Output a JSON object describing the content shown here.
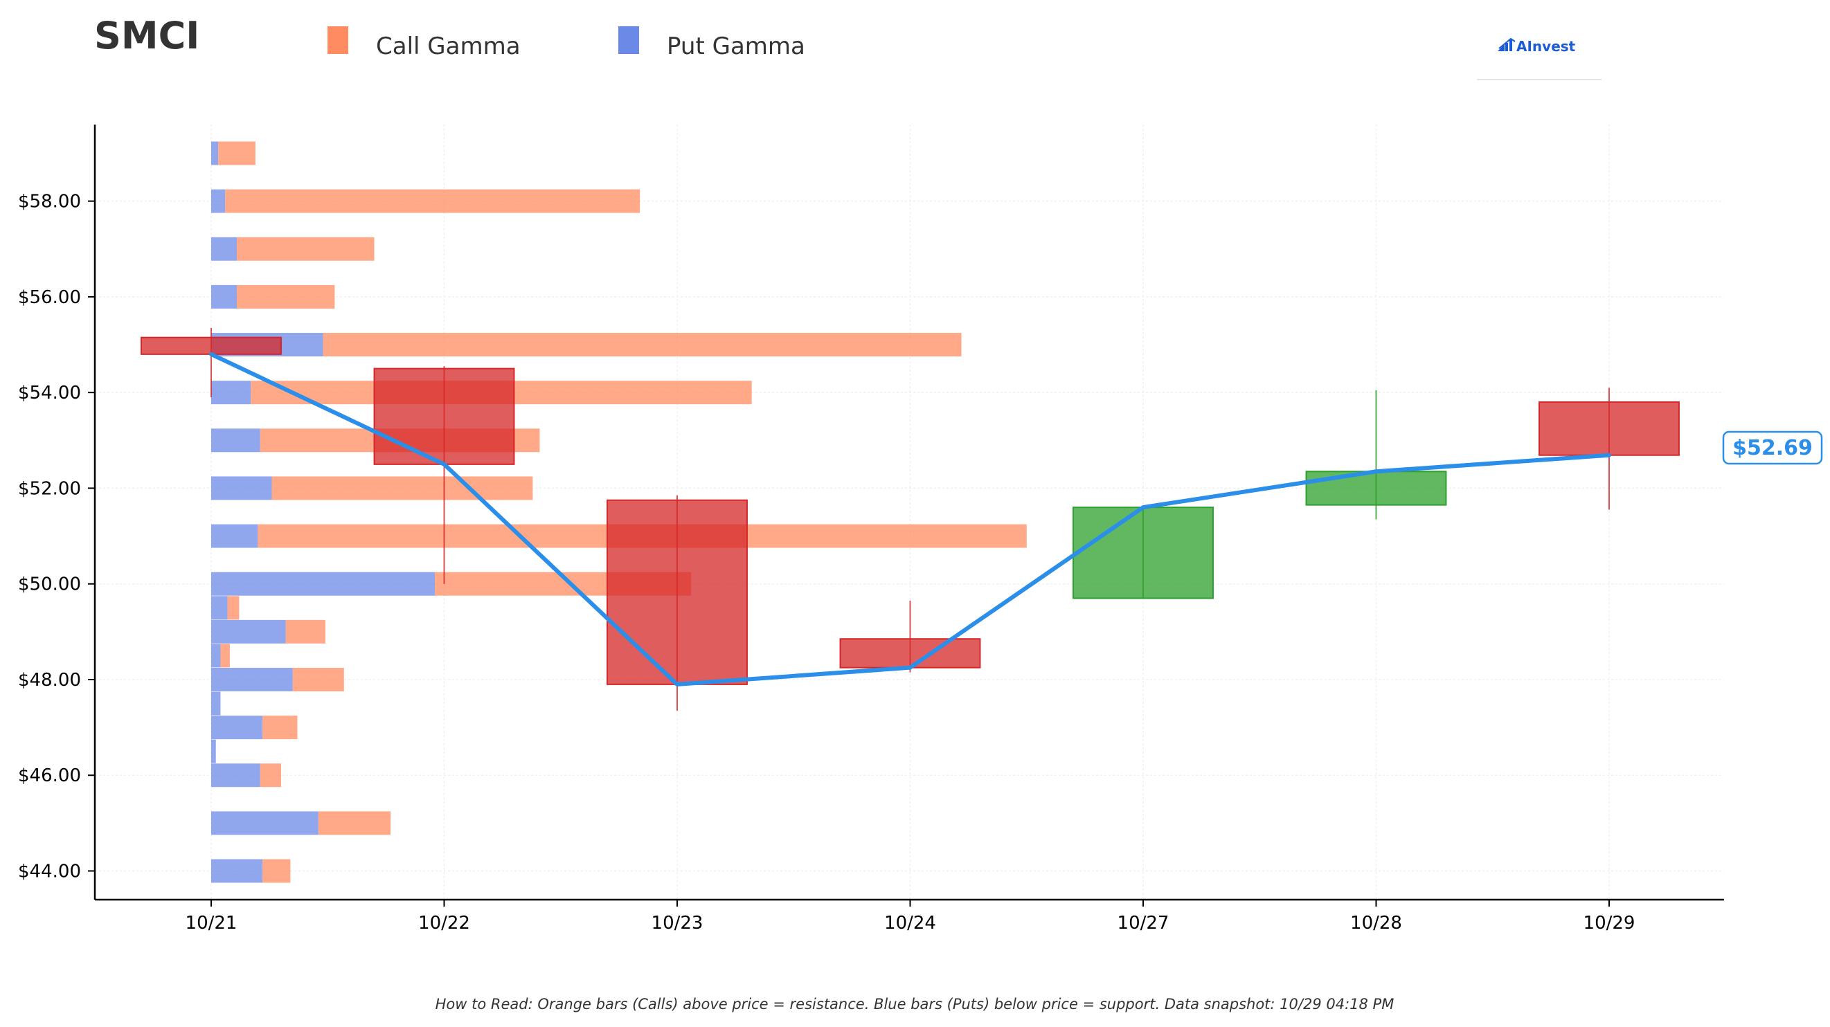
{
  "ticker": "SMCI",
  "legend": [
    {
      "label": "Call Gamma",
      "color": "#ff8c61"
    },
    {
      "label": "Put Gamma",
      "color": "#6b8ae8"
    }
  ],
  "logo": {
    "text": "AInvest",
    "color": "#1a5bd6"
  },
  "current_price_label": "$52.69",
  "footer": "How to Read: Orange bars (Calls) above price = resistance. Blue bars (Puts) below price = support. Data snapshot: 10/29 04:18 PM",
  "colors": {
    "call": "#ff8c61",
    "put": "#6b8ae8",
    "up": "#2ca02c",
    "down": "#d62728",
    "price_line": "#2b8ee8"
  },
  "chart_data": {
    "type": "candlestick_with_gamma_bars",
    "x_categories": [
      "10/21",
      "10/22",
      "10/23",
      "10/24",
      "10/27",
      "10/28",
      "10/29"
    ],
    "ylim": [
      43.4,
      59.6
    ],
    "y_ticks": [
      44,
      46,
      48,
      50,
      52,
      54,
      56,
      58
    ],
    "y_tick_labels": [
      "$44.00",
      "$46.00",
      "$48.00",
      "$50.00",
      "$52.00",
      "$54.00",
      "$56.00",
      "$58.00"
    ],
    "grid": true,
    "candles": [
      {
        "date": "10/21",
        "open": 55.15,
        "high": 55.35,
        "low": 53.9,
        "close": 54.8
      },
      {
        "date": "10/22",
        "open": 54.5,
        "high": 54.55,
        "low": 50.0,
        "close": 52.5
      },
      {
        "date": "10/23",
        "open": 51.75,
        "high": 51.85,
        "low": 47.35,
        "close": 47.9
      },
      {
        "date": "10/24",
        "open": 48.85,
        "high": 49.65,
        "low": 48.15,
        "close": 48.25
      },
      {
        "date": "10/27",
        "open": 49.7,
        "high": 51.6,
        "low": 49.7,
        "close": 51.6
      },
      {
        "date": "10/28",
        "open": 51.65,
        "high": 54.05,
        "low": 51.35,
        "close": 52.35
      },
      {
        "date": "10/29",
        "open": 53.8,
        "high": 54.1,
        "low": 51.55,
        "close": 52.69
      }
    ],
    "gamma_bars": {
      "unit_note": "horizontal bar lengths in x-axis day units starting at 10/21",
      "levels": [
        {
          "strike": 59.0,
          "put": 0.03,
          "call": 0.16
        },
        {
          "strike": 58.0,
          "put": 0.06,
          "call": 1.78
        },
        {
          "strike": 57.0,
          "put": 0.11,
          "call": 0.59
        },
        {
          "strike": 56.0,
          "put": 0.11,
          "call": 0.42
        },
        {
          "strike": 55.0,
          "put": 0.48,
          "call": 2.74
        },
        {
          "strike": 54.0,
          "put": 0.17,
          "call": 2.15
        },
        {
          "strike": 53.0,
          "put": 0.21,
          "call": 1.2
        },
        {
          "strike": 52.0,
          "put": 0.26,
          "call": 1.12
        },
        {
          "strike": 51.0,
          "put": 0.2,
          "call": 3.3
        },
        {
          "strike": 50.0,
          "put": 0.96,
          "call": 1.1
        },
        {
          "strike": 49.5,
          "put": 0.07,
          "call": 0.05
        },
        {
          "strike": 49.0,
          "put": 0.32,
          "call": 0.17
        },
        {
          "strike": 48.5,
          "put": 0.04,
          "call": 0.04
        },
        {
          "strike": 48.0,
          "put": 0.35,
          "call": 0.22
        },
        {
          "strike": 47.5,
          "put": 0.04,
          "call": 0.0
        },
        {
          "strike": 47.0,
          "put": 0.22,
          "call": 0.15
        },
        {
          "strike": 46.5,
          "put": 0.02,
          "call": 0.0
        },
        {
          "strike": 46.0,
          "put": 0.21,
          "call": 0.09
        },
        {
          "strike": 45.0,
          "put": 0.46,
          "call": 0.31
        },
        {
          "strike": 44.0,
          "put": 0.22,
          "call": 0.12
        }
      ]
    },
    "price_line": {
      "x": [
        "10/21",
        "10/22",
        "10/23",
        "10/24",
        "10/27",
        "10/28",
        "10/29"
      ],
      "y": [
        54.8,
        52.5,
        47.9,
        48.25,
        51.6,
        52.35,
        52.69
      ]
    }
  }
}
